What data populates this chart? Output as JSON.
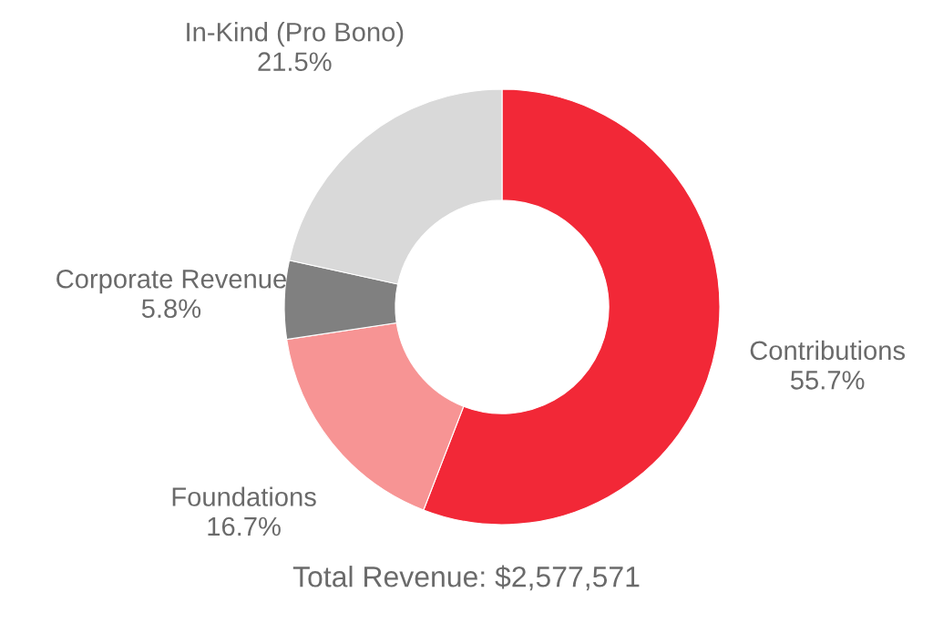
{
  "chart_data": {
    "type": "donut",
    "categories": [
      "Contributions",
      "Foundations",
      "Corporate Revenue",
      "In-Kind (Pro Bono)"
    ],
    "values": [
      55.7,
      16.7,
      5.8,
      21.5
    ],
    "value_labels": [
      "55.7%",
      "16.7%",
      "5.8%",
      "21.5%"
    ],
    "colors": [
      "#f22837",
      "#f79494",
      "#808080",
      "#d9d9d9"
    ],
    "annotations": [
      "Total Revenue: $2,577,571"
    ]
  }
}
